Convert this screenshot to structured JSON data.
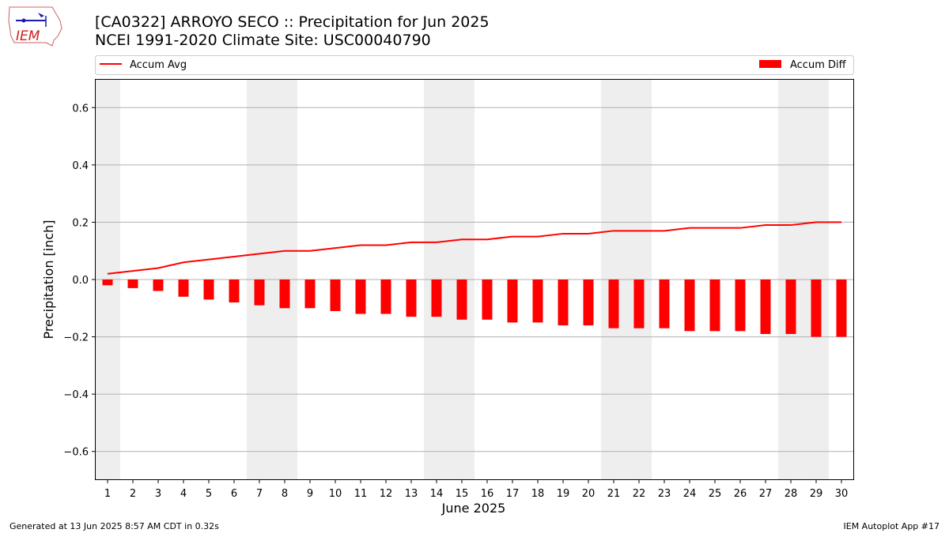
{
  "header": {
    "title_line1": "[CA0322] ARROYO SECO :: Precipitation for Jun 2025",
    "title_line2": "NCEI 1991-2020 Climate Site: USC00040790"
  },
  "logo": {
    "text": "IEM",
    "icon": "iem-iowa-logo"
  },
  "footer": {
    "generated": "Generated at 13 Jun 2025 8:57 AM CDT in 0.32s",
    "app": "IEM Autoplot App #17"
  },
  "chart_data": {
    "type": "bar",
    "xlabel": "June 2025",
    "ylabel": "Precipitation [inch]",
    "ylim": [
      -0.7,
      0.7
    ],
    "yticks": [
      -0.6,
      -0.4,
      -0.2,
      0.0,
      0.2,
      0.4,
      0.6
    ],
    "ytick_labels": [
      "−0.6",
      "−0.4",
      "−0.2",
      "0.0",
      "0.2",
      "0.4",
      "0.6"
    ],
    "grid": "horizontal",
    "categories": [
      "1",
      "2",
      "3",
      "4",
      "5",
      "6",
      "7",
      "8",
      "9",
      "10",
      "11",
      "12",
      "13",
      "14",
      "15",
      "16",
      "17",
      "18",
      "19",
      "20",
      "21",
      "22",
      "23",
      "24",
      "25",
      "26",
      "27",
      "28",
      "29",
      "30"
    ],
    "weekend_shading": [
      [
        1,
        1
      ],
      [
        7,
        8
      ],
      [
        14,
        15
      ],
      [
        21,
        22
      ],
      [
        28,
        29
      ]
    ],
    "legend_position": "top",
    "series": [
      {
        "name": "Accum Avg",
        "kind": "line",
        "color": "#ff0000",
        "values": [
          0.02,
          0.03,
          0.04,
          0.06,
          0.07,
          0.08,
          0.09,
          0.1,
          0.1,
          0.11,
          0.12,
          0.12,
          0.13,
          0.13,
          0.14,
          0.14,
          0.15,
          0.15,
          0.16,
          0.16,
          0.17,
          0.17,
          0.17,
          0.18,
          0.18,
          0.18,
          0.19,
          0.19,
          0.2,
          0.2
        ]
      },
      {
        "name": "Accum Diff",
        "kind": "bar",
        "color": "#ff0000",
        "values": [
          -0.02,
          -0.03,
          -0.04,
          -0.06,
          -0.07,
          -0.08,
          -0.09,
          -0.1,
          -0.1,
          -0.11,
          -0.12,
          -0.12,
          -0.13,
          -0.13,
          -0.14,
          -0.14,
          -0.15,
          -0.15,
          -0.16,
          -0.16,
          -0.17,
          -0.17,
          -0.17,
          -0.18,
          -0.18,
          -0.18,
          -0.19,
          -0.19,
          -0.2,
          -0.2
        ]
      }
    ]
  }
}
